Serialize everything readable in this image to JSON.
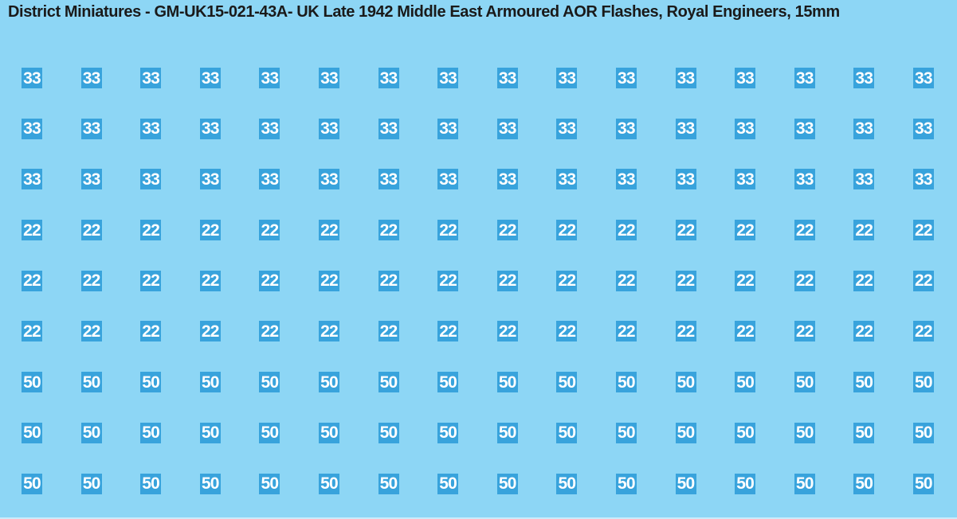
{
  "title": "District Miniatures - GM-UK15-021-43A- UK Late 1942 Middle East Armoured AOR Flashes, Royal Engineers, 15mm",
  "colors": {
    "background": "#8dd6f5",
    "square_fill": "#38a3dc",
    "square_text": "#ffffff",
    "title_text": "#1a1a1a"
  },
  "grid": {
    "columns": 16,
    "rows": [
      {
        "value": "33"
      },
      {
        "value": "33"
      },
      {
        "value": "33"
      },
      {
        "value": "22"
      },
      {
        "value": "22"
      },
      {
        "value": "22"
      },
      {
        "value": "50"
      },
      {
        "value": "50"
      },
      {
        "value": "50"
      }
    ]
  }
}
